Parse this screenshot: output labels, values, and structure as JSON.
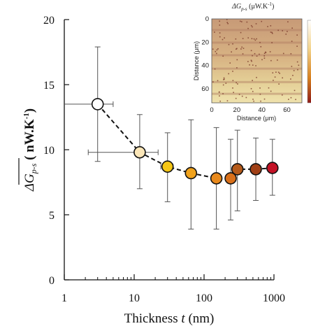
{
  "chart_data": {
    "type": "scatter",
    "xscale": "log",
    "xlim": [
      1,
      1000
    ],
    "ylim": [
      0,
      20
    ],
    "xticks": [
      1,
      10,
      100,
      1000
    ],
    "xtick_labels": [
      "1",
      "10",
      "100",
      "1000"
    ],
    "yticks": [
      0,
      5,
      10,
      15,
      20
    ],
    "ytick_labels": [
      "0",
      "5",
      "10",
      "15",
      "20"
    ],
    "xlabel_main": "Thickness ",
    "xlabel_var": "t",
    "xlabel_unit": " (nm)",
    "ylabel_delta": "ΔG",
    "ylabel_sub": "p-s",
    "ylabel_unit_open": " ( nW.K",
    "ylabel_exp": "-1",
    "ylabel_unit_close": ")",
    "grid": false,
    "trend": "dashed",
    "points": [
      {
        "x": 3,
        "y": 13.5,
        "yerr_low": 9.1,
        "yerr_high": 17.9,
        "xerr_low": 1,
        "xerr_high": 5,
        "color": "#ffffff"
      },
      {
        "x": 12,
        "y": 9.8,
        "yerr_low": 7.0,
        "yerr_high": 12.7,
        "xerr_low": 2.2,
        "xerr_high": 22,
        "color": "#fbe6b8"
      },
      {
        "x": 30,
        "y": 8.7,
        "yerr_low": 6.0,
        "yerr_high": 11.3,
        "xerr_low": 24,
        "xerr_high": 36,
        "color": "#f5c616"
      },
      {
        "x": 65,
        "y": 8.2,
        "yerr_low": 3.9,
        "yerr_high": 12.3,
        "color": "#f0a21c"
      },
      {
        "x": 150,
        "y": 7.8,
        "yerr_low": 3.9,
        "yerr_high": 11.7,
        "color": "#e8891c"
      },
      {
        "x": 240,
        "y": 7.8,
        "yerr_low": 4.6,
        "yerr_high": 10.8,
        "color": "#d9701a"
      },
      {
        "x": 300,
        "y": 8.5,
        "yerr_low": 5.3,
        "yerr_high": 11.5,
        "color": "#b55a1a"
      },
      {
        "x": 550,
        "y": 8.5,
        "yerr_low": 6.1,
        "yerr_high": 10.9,
        "color": "#a04016"
      },
      {
        "x": 950,
        "y": 8.6,
        "yerr_low": 6.5,
        "yerr_high": 10.8,
        "color": "#c41226"
      }
    ],
    "inset": {
      "title_delta": "ΔG",
      "title_sub": "p-s",
      "title_unit": " (μW.K",
      "title_exp": "-1",
      "title_close": ")",
      "xlabel": "Distance (μm)",
      "ylabel": "Distance (μm)",
      "xticks": [
        0,
        20,
        40,
        60
      ],
      "yticks": [
        0,
        20,
        40,
        60
      ],
      "xlim": [
        0,
        72
      ],
      "ylim": [
        0,
        72
      ]
    }
  }
}
